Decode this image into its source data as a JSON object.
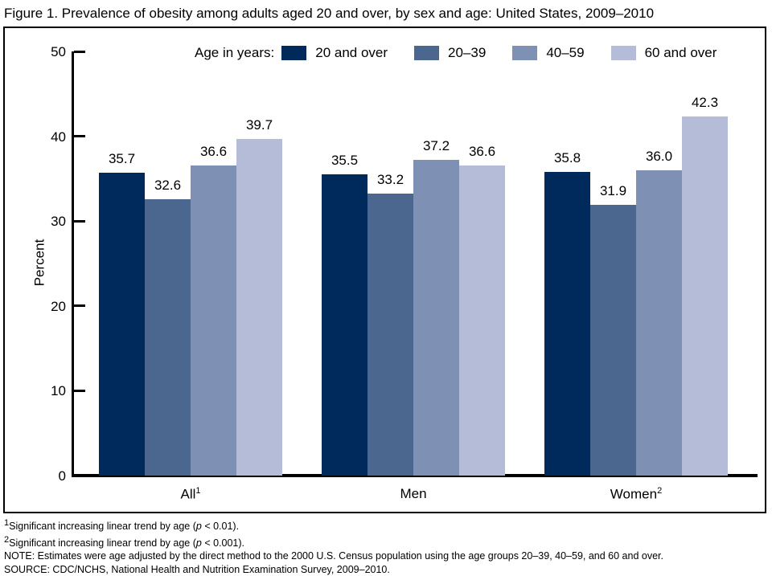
{
  "figure_title": "Figure 1. Prevalence of obesity among adults aged 20 and over, by sex and age: United States, 2009–2010",
  "chart_data": {
    "type": "bar",
    "title": "Figure 1. Prevalence of obesity among adults aged 20 and over, by sex and age: United States, 2009–2010",
    "xlabel": "",
    "ylabel": "Percent",
    "ylim": [
      0,
      50
    ],
    "yticks": [
      0,
      10,
      20,
      30,
      40,
      50
    ],
    "grid": false,
    "legend_position": "top",
    "legend_title": "Age in years:",
    "categories": [
      {
        "label": "All",
        "sup": "1"
      },
      {
        "label": "Men",
        "sup": ""
      },
      {
        "label": "Women",
        "sup": "2"
      }
    ],
    "series": [
      {
        "name": "20 and over",
        "color": "#002a5c",
        "values": [
          35.7,
          35.5,
          35.8
        ]
      },
      {
        "name": "20–39",
        "color": "#4b668f",
        "values": [
          32.6,
          33.2,
          31.9
        ]
      },
      {
        "name": "40–59",
        "color": "#7e91b5",
        "values": [
          36.6,
          37.2,
          36.0
        ]
      },
      {
        "name": "60 and over",
        "color": "#b5bcd8",
        "values": [
          39.7,
          36.6,
          42.3
        ]
      }
    ]
  },
  "footnotes": [
    {
      "sup": "1",
      "pre": "Significant increasing linear trend by age (",
      "italic": "p",
      "post": " < 0.01)."
    },
    {
      "sup": "2",
      "pre": "Significant increasing linear trend by age (",
      "italic": "p",
      "post": " < 0.001)."
    },
    {
      "sup": "",
      "pre": "NOTE: Estimates were age adjusted by the direct method to the 2000 U.S. Census population using the age groups 20–39, 40–59, and 60 and over.",
      "italic": "",
      "post": ""
    },
    {
      "sup": "",
      "pre": "SOURCE: CDC/NCHS, National Health and Nutrition Examination Survey, 2009–2010.",
      "italic": "",
      "post": ""
    }
  ]
}
